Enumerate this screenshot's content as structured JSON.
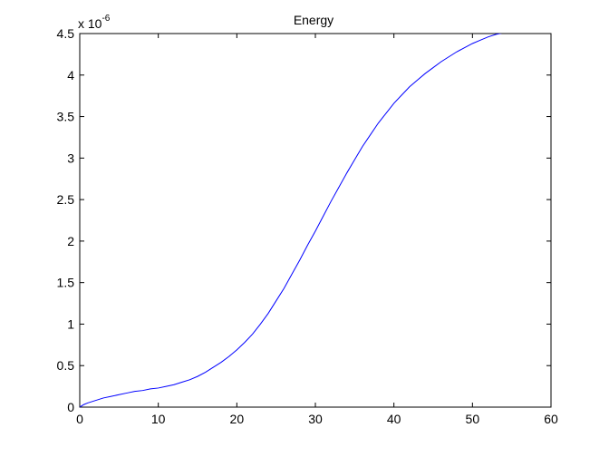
{
  "chart_data": {
    "type": "line",
    "title": "Energy",
    "xlabel": "",
    "ylabel": "",
    "xlim": [
      0,
      60
    ],
    "ylim": [
      0,
      4.5
    ],
    "y_exponent_base": "x 10",
    "y_exponent_power": "-6",
    "x_ticks": [
      "0",
      "10",
      "20",
      "30",
      "40",
      "50",
      "60"
    ],
    "y_ticks": [
      "0",
      "0.5",
      "1",
      "1.5",
      "2",
      "2.5",
      "3",
      "3.5",
      "4",
      "4.5"
    ],
    "grid": false,
    "line_color": "#0000ff",
    "series": [
      {
        "x": [
          0,
          0.5,
          1,
          2,
          3,
          4,
          5,
          6,
          7,
          8,
          9,
          10,
          11,
          12,
          13,
          14,
          15,
          16,
          17,
          18,
          19,
          20,
          21,
          22,
          23,
          24,
          25,
          26,
          27,
          28,
          29,
          30,
          31,
          32,
          33,
          34,
          35,
          36,
          37,
          38,
          39,
          40,
          41,
          42,
          43,
          44,
          45,
          46,
          47,
          48,
          49,
          50,
          51,
          52,
          53,
          54
        ],
        "values": [
          0,
          0.03,
          0.05,
          0.08,
          0.11,
          0.13,
          0.15,
          0.17,
          0.19,
          0.2,
          0.22,
          0.23,
          0.25,
          0.27,
          0.3,
          0.33,
          0.37,
          0.42,
          0.48,
          0.54,
          0.61,
          0.69,
          0.78,
          0.88,
          1.0,
          1.13,
          1.28,
          1.43,
          1.6,
          1.77,
          1.95,
          2.12,
          2.3,
          2.48,
          2.65,
          2.82,
          2.98,
          3.14,
          3.28,
          3.42,
          3.54,
          3.66,
          3.76,
          3.86,
          3.94,
          4.02,
          4.09,
          4.16,
          4.22,
          4.28,
          4.33,
          4.38,
          4.42,
          4.46,
          4.49,
          4.51
        ]
      }
    ]
  }
}
